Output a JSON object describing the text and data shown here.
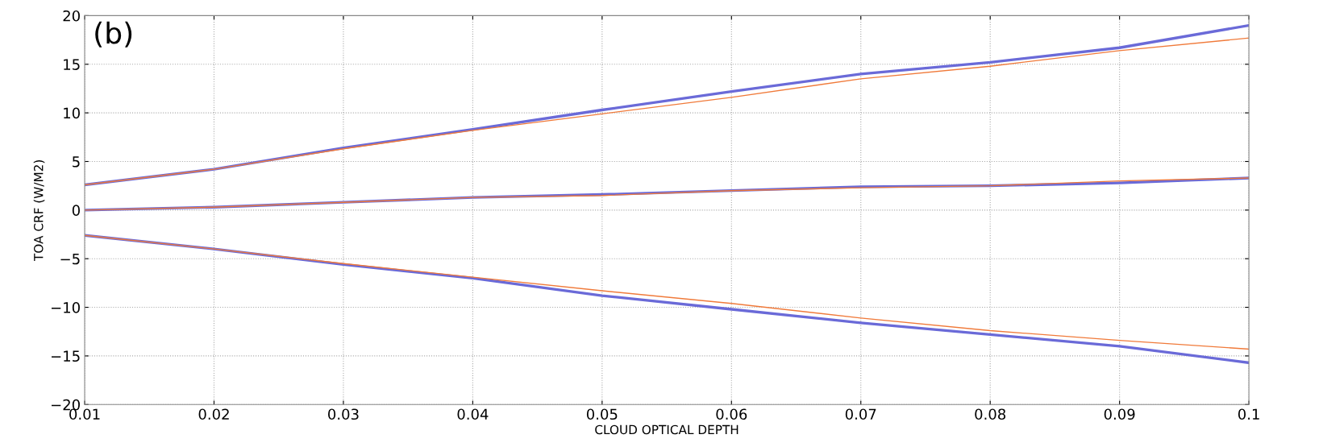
{
  "chart_data": {
    "type": "line",
    "xlabel": "CLOUD OPTICAL DEPTH",
    "ylabel": "TOA CRF (W/M2)",
    "annotations": [
      "(b)"
    ],
    "x": [
      0.01,
      0.02,
      0.03,
      0.04,
      0.05,
      0.06,
      0.07,
      0.08,
      0.09,
      0.1
    ],
    "series": [
      {
        "color": "#6a6ad8",
        "values": [
          2.6,
          4.2,
          6.4,
          8.3,
          10.3,
          12.2,
          14.0,
          15.2,
          16.7,
          19.0
        ]
      },
      {
        "color": "#f07a3a",
        "values": [
          2.6,
          4.2,
          6.3,
          8.2,
          9.9,
          11.6,
          13.5,
          14.8,
          16.4,
          17.7
        ]
      },
      {
        "color": "#6a6ad8",
        "values": [
          0,
          0.3,
          0.8,
          1.3,
          1.6,
          2.0,
          2.4,
          2.5,
          2.8,
          3.3
        ]
      },
      {
        "color": "#f07a3a",
        "values": [
          0,
          0.3,
          0.8,
          1.3,
          1.5,
          2.0,
          2.3,
          2.5,
          3.0,
          3.3
        ]
      },
      {
        "color": "#6a6ad8",
        "values": [
          -2.6,
          -4.0,
          -5.6,
          -7.0,
          -8.8,
          -10.2,
          -11.6,
          -12.8,
          -14.0,
          -15.7
        ]
      },
      {
        "color": "#f07a3a",
        "values": [
          -2.6,
          -4.0,
          -5.5,
          -6.9,
          -8.3,
          -9.6,
          -11.1,
          -12.4,
          -13.4,
          -14.3
        ]
      }
    ],
    "xlim": [
      0.01,
      0.1
    ],
    "xticks": [
      0.01,
      0.02,
      0.03,
      0.04,
      0.05,
      0.06,
      0.07,
      0.08,
      0.09,
      0.1
    ],
    "ylim": [
      -20,
      20
    ],
    "yticks": [
      -20,
      -15,
      -10,
      -5,
      0,
      5,
      10,
      15,
      20
    ],
    "grid": true,
    "legend": false,
    "marker": "none",
    "line_style": "solid"
  }
}
